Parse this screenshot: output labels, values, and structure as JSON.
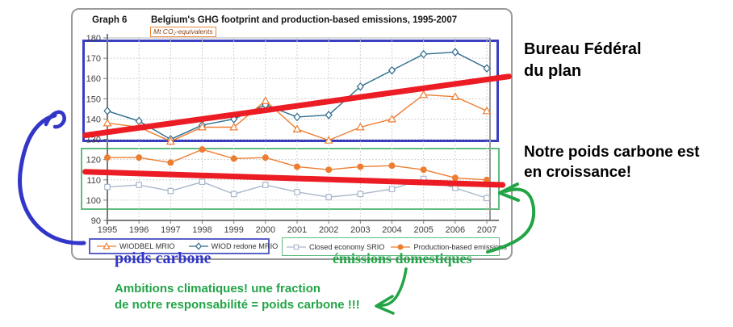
{
  "card": {
    "graph_label": "Graph 6",
    "title": "Belgium's GHG footprint and production-based emissions, 1995-2007",
    "unit_label": "Mt CO₂-equivalents"
  },
  "annotations": {
    "bureau_line1": "Bureau Fédéral",
    "bureau_line2": "du plan",
    "growth_line1": "Notre poids carbone est",
    "growth_line2": "en croissance!",
    "poids_carbone": "poids carbone",
    "emissions_domestiques": "émissions domestiques",
    "ambitions_line1": "Ambitions climatiques! une fraction",
    "ambitions_line2": "de notre responsabilité = poids carbone !!!"
  },
  "colors": {
    "trend_red": "#EC1C24",
    "annotation_blue": "#3236C8",
    "annotation_green": "#22A447",
    "cluster_box_blue": "#3A3FC2",
    "cluster_box_green": "#60BB80",
    "legend_box_blue": "#5A61C7",
    "legend_box_green": "#60BB80",
    "series_orange": "#ED7D31",
    "series_teal": "#2E6C8E",
    "series_gray": "#A9B8CC"
  },
  "chart_data": {
    "type": "line",
    "title": "Belgium's GHG footprint and production-based emissions, 1995-2007",
    "unit": "Mt CO₂-equivalents",
    "x": [
      1995,
      1996,
      1997,
      1998,
      1999,
      2000,
      2001,
      2002,
      2003,
      2004,
      2005,
      2006,
      2007
    ],
    "ylim": [
      90,
      180
    ],
    "ytick_step": 10,
    "grid": true,
    "legend_position": "bottom",
    "series": [
      {
        "name": "WIODBEL MRIO",
        "color": "#ED7D31",
        "marker": "triangle",
        "fill": "open",
        "values": [
          138,
          136,
          129,
          136,
          136,
          149,
          135,
          129.5,
          136,
          140,
          152,
          151,
          144
        ]
      },
      {
        "name": "WIOD redone MRIO",
        "color": "#2E6C8E",
        "marker": "diamond",
        "fill": "open",
        "values": [
          144,
          139,
          130,
          137,
          140,
          147,
          141,
          142,
          156,
          164,
          172,
          173,
          165
        ]
      },
      {
        "name": "Closed economy SRIO",
        "color": "#A9B8CC",
        "marker": "square",
        "fill": "open",
        "values": [
          106.5,
          107.5,
          104.5,
          109,
          103,
          107.5,
          104,
          101.5,
          103,
          105.5,
          110.5,
          106,
          101
        ]
      },
      {
        "name": "Production-based emissions",
        "color": "#ED7D31",
        "marker": "circle",
        "fill": "solid",
        "values": [
          121,
          121,
          118.5,
          125,
          120.5,
          121,
          116.5,
          115,
          116.5,
          117,
          115,
          111,
          110
        ]
      }
    ],
    "trend_annotations": [
      {
        "name": "footprint-trend-up",
        "color": "#EC1C24",
        "from": {
          "x": 1994.3,
          "y": 132
        },
        "to": {
          "x": 2007.7,
          "y": 161
        }
      },
      {
        "name": "domestic-trend-down",
        "color": "#EC1C24",
        "from": {
          "x": 1994.3,
          "y": 114
        },
        "to": {
          "x": 2007.5,
          "y": 107.5
        }
      }
    ]
  }
}
